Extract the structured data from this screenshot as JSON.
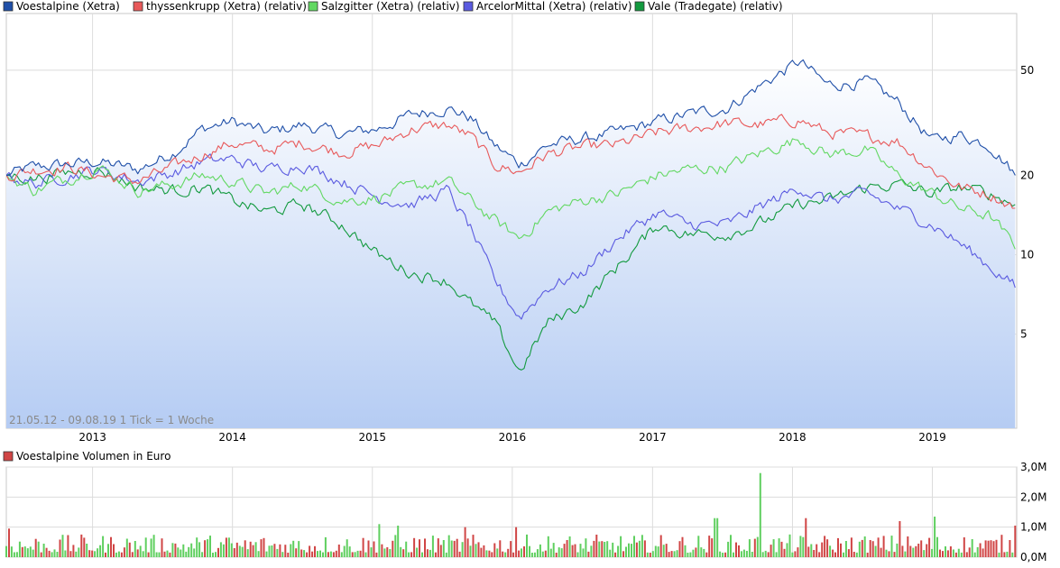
{
  "chart_data": [
    {
      "type": "line",
      "title": "",
      "legend_placement": "top-left",
      "y_scale": "log",
      "ylim": [
        2.2,
        82
      ],
      "xlim": [
        "2012-05-21",
        "2019-08-09"
      ],
      "grid": true,
      "range_label": "21.05.12 - 09.08.19",
      "tick_label": "1 Tick = 1 Woche",
      "x_ticks": [
        "2013",
        "2014",
        "2015",
        "2016",
        "2017",
        "2018",
        "2019"
      ],
      "y_ticks": [
        "5",
        "10",
        "20",
        "50"
      ],
      "y_tick_values": [
        5,
        10,
        20,
        50
      ],
      "series": [
        {
          "name": "Voestalpine (Xetra)",
          "color": "#1f4fa8",
          "area_fill": true,
          "points": [
            [
              "2012-05-21",
              20.0
            ],
            [
              "2012-08-01",
              21.5
            ],
            [
              "2012-11-01",
              22.0
            ],
            [
              "2013-01-15",
              22.5
            ],
            [
              "2013-05-01",
              21.0
            ],
            [
              "2013-08-01",
              24.5
            ],
            [
              "2013-10-15",
              30.0
            ],
            [
              "2014-01-01",
              32.0
            ],
            [
              "2014-04-01",
              29.0
            ],
            [
              "2014-07-01",
              31.0
            ],
            [
              "2014-10-15",
              28.5
            ],
            [
              "2015-01-15",
              30.0
            ],
            [
              "2015-04-15",
              34.0
            ],
            [
              "2015-07-15",
              36.0
            ],
            [
              "2015-09-15",
              33.0
            ],
            [
              "2015-11-15",
              26.0
            ],
            [
              "2016-01-20",
              22.0
            ],
            [
              "2016-04-01",
              26.0
            ],
            [
              "2016-07-01",
              27.5
            ],
            [
              "2016-10-01",
              29.0
            ],
            [
              "2017-01-15",
              32.0
            ],
            [
              "2017-04-01",
              34.0
            ],
            [
              "2017-07-15",
              36.0
            ],
            [
              "2017-10-01",
              43.0
            ],
            [
              "2018-01-20",
              54.0
            ],
            [
              "2018-04-01",
              44.0
            ],
            [
              "2018-07-15",
              45.0
            ],
            [
              "2018-10-01",
              38.0
            ],
            [
              "2019-01-01",
              27.0
            ],
            [
              "2019-03-15",
              28.5
            ],
            [
              "2019-06-01",
              26.0
            ],
            [
              "2019-08-09",
              20.0
            ]
          ]
        },
        {
          "name": "thyssenkrupp (Xetra) (relativ)",
          "color": "#e8595a",
          "points": [
            [
              "2012-05-21",
              20.0
            ],
            [
              "2012-08-01",
              21.0
            ],
            [
              "2012-11-01",
              21.5
            ],
            [
              "2013-01-15",
              20.0
            ],
            [
              "2013-05-01",
              19.0
            ],
            [
              "2013-08-01",
              21.5
            ],
            [
              "2013-10-15",
              24.0
            ],
            [
              "2014-01-01",
              26.5
            ],
            [
              "2014-04-01",
              25.0
            ],
            [
              "2014-07-01",
              26.5
            ],
            [
              "2014-10-15",
              24.5
            ],
            [
              "2015-01-15",
              26.0
            ],
            [
              "2015-04-15",
              30.0
            ],
            [
              "2015-07-15",
              31.0
            ],
            [
              "2015-09-15",
              28.0
            ],
            [
              "2015-11-15",
              22.0
            ],
            [
              "2016-01-20",
              20.5
            ],
            [
              "2016-04-01",
              24.0
            ],
            [
              "2016-07-01",
              25.5
            ],
            [
              "2016-10-01",
              26.0
            ],
            [
              "2017-01-15",
              29.0
            ],
            [
              "2017-04-01",
              30.0
            ],
            [
              "2017-07-15",
              31.5
            ],
            [
              "2017-10-01",
              31.0
            ],
            [
              "2018-01-20",
              32.5
            ],
            [
              "2018-04-01",
              29.0
            ],
            [
              "2018-07-15",
              28.0
            ],
            [
              "2018-10-01",
              27.0
            ],
            [
              "2019-01-01",
              21.0
            ],
            [
              "2019-03-15",
              18.0
            ],
            [
              "2019-06-01",
              17.0
            ],
            [
              "2019-08-09",
              15.0
            ]
          ]
        },
        {
          "name": "Salzgitter (Xetra) (relativ)",
          "color": "#62d862",
          "points": [
            [
              "2012-05-21",
              20.0
            ],
            [
              "2012-08-01",
              17.5
            ],
            [
              "2012-11-01",
              19.5
            ],
            [
              "2013-01-15",
              21.5
            ],
            [
              "2013-05-01",
              17.5
            ],
            [
              "2013-08-01",
              18.5
            ],
            [
              "2013-10-15",
              20.0
            ],
            [
              "2014-01-01",
              19.0
            ],
            [
              "2014-04-01",
              17.0
            ],
            [
              "2014-07-01",
              18.5
            ],
            [
              "2014-10-15",
              16.0
            ],
            [
              "2015-01-15",
              16.5
            ],
            [
              "2015-04-15",
              18.0
            ],
            [
              "2015-07-15",
              19.0
            ],
            [
              "2015-09-15",
              16.0
            ],
            [
              "2015-11-15",
              13.5
            ],
            [
              "2016-01-20",
              11.5
            ],
            [
              "2016-04-01",
              14.5
            ],
            [
              "2016-07-01",
              16.0
            ],
            [
              "2016-10-01",
              17.0
            ],
            [
              "2017-01-15",
              20.0
            ],
            [
              "2017-04-01",
              21.0
            ],
            [
              "2017-07-15",
              21.5
            ],
            [
              "2017-10-01",
              24.0
            ],
            [
              "2018-01-20",
              27.5
            ],
            [
              "2018-04-01",
              24.0
            ],
            [
              "2018-07-15",
              25.0
            ],
            [
              "2018-10-01",
              20.0
            ],
            [
              "2019-01-01",
              17.0
            ],
            [
              "2019-03-15",
              15.0
            ],
            [
              "2019-06-01",
              14.0
            ],
            [
              "2019-08-09",
              10.5
            ]
          ]
        },
        {
          "name": "ArcelorMittal (Xetra) (relativ)",
          "color": "#5a5ae0",
          "points": [
            [
              "2012-05-21",
              20.0
            ],
            [
              "2012-08-01",
              18.5
            ],
            [
              "2012-11-01",
              20.0
            ],
            [
              "2013-01-15",
              21.0
            ],
            [
              "2013-05-01",
              19.0
            ],
            [
              "2013-08-01",
              20.5
            ],
            [
              "2013-10-15",
              22.5
            ],
            [
              "2014-01-01",
              23.0
            ],
            [
              "2014-04-01",
              21.0
            ],
            [
              "2014-07-01",
              22.0
            ],
            [
              "2014-10-15",
              19.0
            ],
            [
              "2015-01-15",
              16.5
            ],
            [
              "2015-04-15",
              15.5
            ],
            [
              "2015-07-15",
              17.5
            ],
            [
              "2015-09-15",
              12.5
            ],
            [
              "2015-11-15",
              8.0
            ],
            [
              "2016-01-20",
              5.8
            ],
            [
              "2016-04-01",
              7.5
            ],
            [
              "2016-07-01",
              8.5
            ],
            [
              "2016-10-01",
              11.5
            ],
            [
              "2017-01-15",
              14.5
            ],
            [
              "2017-04-01",
              13.0
            ],
            [
              "2017-07-15",
              13.0
            ],
            [
              "2017-10-01",
              15.0
            ],
            [
              "2018-01-20",
              18.0
            ],
            [
              "2018-04-01",
              16.0
            ],
            [
              "2018-07-15",
              17.0
            ],
            [
              "2018-10-01",
              15.0
            ],
            [
              "2019-01-01",
              13.0
            ],
            [
              "2019-03-15",
              11.0
            ],
            [
              "2019-06-01",
              9.0
            ],
            [
              "2019-08-09",
              7.5
            ]
          ]
        },
        {
          "name": "Vale (Tradegate) (relativ)",
          "color": "#139a3f",
          "points": [
            [
              "2012-05-21",
              20.0
            ],
            [
              "2012-08-01",
              19.5
            ],
            [
              "2012-11-01",
              20.5
            ],
            [
              "2013-01-15",
              21.0
            ],
            [
              "2013-05-01",
              18.0
            ],
            [
              "2013-08-01",
              17.5
            ],
            [
              "2013-10-15",
              18.0
            ],
            [
              "2014-01-01",
              16.0
            ],
            [
              "2014-04-01",
              14.5
            ],
            [
              "2014-07-01",
              15.5
            ],
            [
              "2014-10-15",
              13.0
            ],
            [
              "2015-01-15",
              10.0
            ],
            [
              "2015-04-15",
              8.5
            ],
            [
              "2015-07-15",
              8.0
            ],
            [
              "2015-09-15",
              6.5
            ],
            [
              "2015-11-15",
              5.5
            ],
            [
              "2016-01-20",
              3.6
            ],
            [
              "2016-04-01",
              5.5
            ],
            [
              "2016-07-01",
              6.5
            ],
            [
              "2016-10-01",
              9.0
            ],
            [
              "2017-01-15",
              13.0
            ],
            [
              "2017-04-01",
              12.0
            ],
            [
              "2017-07-15",
              12.0
            ],
            [
              "2017-10-01",
              13.0
            ],
            [
              "2018-01-20",
              15.5
            ],
            [
              "2018-04-01",
              16.0
            ],
            [
              "2018-07-15",
              18.0
            ],
            [
              "2018-10-01",
              18.5
            ],
            [
              "2019-01-01",
              17.0
            ],
            [
              "2019-03-15",
              18.0
            ],
            [
              "2019-06-01",
              17.0
            ],
            [
              "2019-08-09",
              15.5
            ]
          ]
        }
      ]
    },
    {
      "type": "bar",
      "title": "",
      "legend_placement": "top-left",
      "ylim": [
        0,
        3.0
      ],
      "unit": "M",
      "grid": true,
      "y_ticks": [
        "0,0M",
        "1,0M",
        "2,0M",
        "3,0M"
      ],
      "y_tick_values": [
        0,
        1,
        2,
        3
      ],
      "series": [
        {
          "name": "Voestalpine Volumen in Euro",
          "color": "#d04545"
        }
      ],
      "up_color": "#5fcf5f",
      "down_color": "#d04545",
      "highlight_bars": [
        [
          "2012-05-28",
          0.95
        ],
        [
          "2015-01-20",
          1.1
        ],
        [
          "2015-03-10",
          1.05
        ],
        [
          "2015-09-01",
          1.0
        ],
        [
          "2016-01-12",
          1.0
        ],
        [
          "2017-06-15",
          1.3
        ],
        [
          "2017-10-10",
          2.8
        ],
        [
          "2018-02-06",
          1.3
        ],
        [
          "2018-10-09",
          1.2
        ],
        [
          "2019-01-08",
          1.35
        ],
        [
          "2019-08-06",
          1.05
        ]
      ],
      "typical_range": [
        0.15,
        0.7
      ]
    }
  ]
}
